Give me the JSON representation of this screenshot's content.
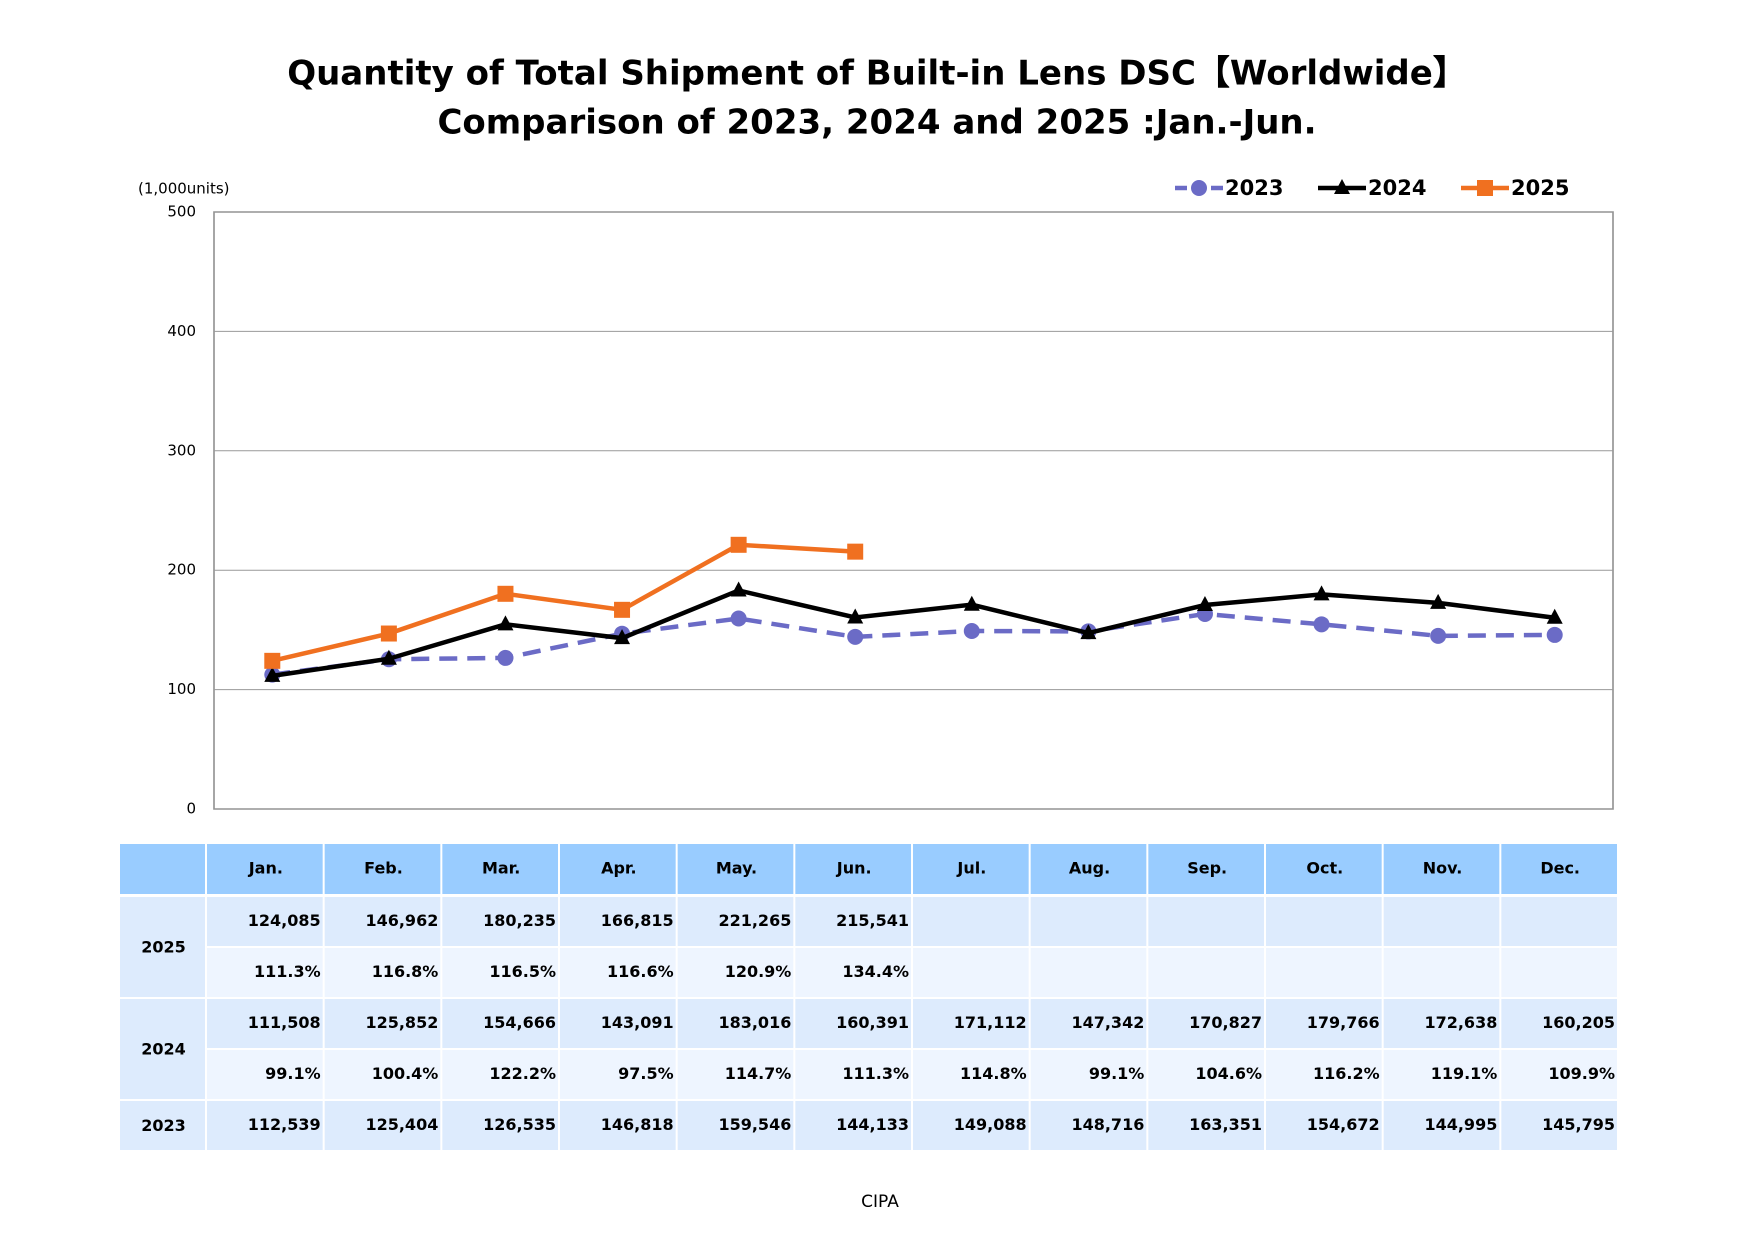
{
  "chart_data": {
    "type": "line",
    "title": "Quantity of Total Shipment of Built-in Lens DSC【Worldwide】",
    "subtitle": "Comparison of 2023, 2024 and 2025 :Jan.-Jun.",
    "y_label": "(1,000units)",
    "source": "CIPA",
    "categories": [
      "Jan.",
      "Feb.",
      "Mar.",
      "Apr.",
      "May.",
      "Jun.",
      "Jul.",
      "Aug.",
      "Sep.",
      "Oct.",
      "Nov.",
      "Dec."
    ],
    "ylim": [
      0,
      500
    ],
    "yticks": [
      0,
      100,
      200,
      300,
      400,
      500
    ],
    "grid": true,
    "legend": "top-right",
    "series": [
      {
        "name": "2023",
        "color": "#6b6bc6",
        "dash": true,
        "marker": "circle",
        "values": [
          112.539,
          125.404,
          126.535,
          146.818,
          159.546,
          144.133,
          149.088,
          148.716,
          163.351,
          154.672,
          144.995,
          145.795
        ],
        "value_labels": [
          "112,539",
          "125,404",
          "126,535",
          "146,818",
          "159,546",
          "144,133",
          "149,088",
          "148,716",
          "163,351",
          "154,672",
          "144,995",
          "145,795"
        ]
      },
      {
        "name": "2024",
        "color": "#000000",
        "dash": false,
        "marker": "triangle",
        "values": [
          111.508,
          125.852,
          154.666,
          143.091,
          183.016,
          160.391,
          171.112,
          147.342,
          170.827,
          179.766,
          172.638,
          160.205
        ],
        "value_labels": [
          "111,508",
          "125,852",
          "154,666",
          "143,091",
          "183,016",
          "160,391",
          "171,112",
          "147,342",
          "170,827",
          "179,766",
          "172,638",
          "160,205"
        ],
        "yoy_labels": [
          "99.1%",
          "100.4%",
          "122.2%",
          "97.5%",
          "114.7%",
          "111.3%",
          "114.8%",
          "99.1%",
          "104.6%",
          "116.2%",
          "119.1%",
          "109.9%"
        ]
      },
      {
        "name": "2025",
        "color": "#f07020",
        "dash": false,
        "marker": "square",
        "values": [
          124.085,
          146.962,
          180.235,
          166.815,
          221.265,
          215.541,
          null,
          null,
          null,
          null,
          null,
          null
        ],
        "value_labels": [
          "124,085",
          "146,962",
          "180,235",
          "166,815",
          "221,265",
          "215,541",
          null,
          null,
          null,
          null,
          null,
          null
        ],
        "yoy_labels": [
          "111.3%",
          "116.8%",
          "116.5%",
          "116.6%",
          "120.9%",
          "134.4%",
          null,
          null,
          null,
          null,
          null,
          null
        ]
      }
    ]
  }
}
